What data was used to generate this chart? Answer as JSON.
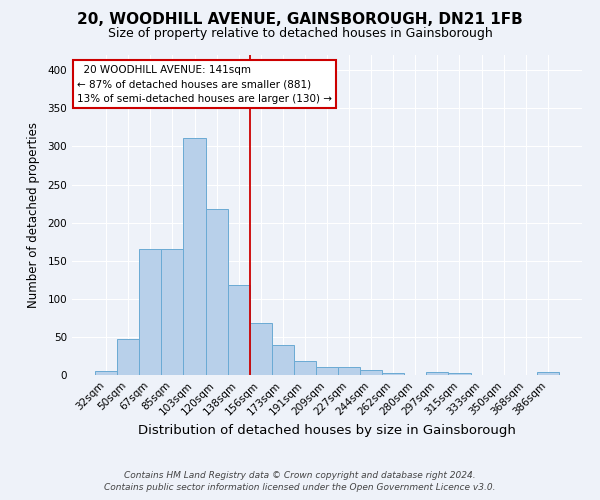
{
  "title": "20, WOODHILL AVENUE, GAINSBOROUGH, DN21 1FB",
  "subtitle": "Size of property relative to detached houses in Gainsborough",
  "xlabel": "Distribution of detached houses by size in Gainsborough",
  "ylabel": "Number of detached properties",
  "footer_line1": "Contains HM Land Registry data © Crown copyright and database right 2024.",
  "footer_line2": "Contains public sector information licensed under the Open Government Licence v3.0.",
  "categories": [
    "32sqm",
    "50sqm",
    "67sqm",
    "85sqm",
    "103sqm",
    "120sqm",
    "138sqm",
    "156sqm",
    "173sqm",
    "191sqm",
    "209sqm",
    "227sqm",
    "244sqm",
    "262sqm",
    "280sqm",
    "297sqm",
    "315sqm",
    "333sqm",
    "350sqm",
    "368sqm",
    "386sqm"
  ],
  "values": [
    5,
    47,
    165,
    165,
    311,
    218,
    118,
    68,
    39,
    19,
    10,
    10,
    7,
    3,
    0,
    4,
    3,
    0,
    0,
    0,
    4
  ],
  "bar_color": "#b8d0ea",
  "bar_edge_color": "#6aaad4",
  "vline_color": "#cc0000",
  "annotation_text": "  20 WOODHILL AVENUE: 141sqm\n← 87% of detached houses are smaller (881)\n13% of semi-detached houses are larger (130) →",
  "annotation_box_color": "#ffffff",
  "annotation_box_edge": "#cc0000",
  "ylim": [
    0,
    420
  ],
  "yticks": [
    0,
    50,
    100,
    150,
    200,
    250,
    300,
    350,
    400
  ],
  "background_color": "#eef2f9",
  "grid_color": "#ffffff",
  "title_fontsize": 11,
  "subtitle_fontsize": 9,
  "xlabel_fontsize": 9.5,
  "ylabel_fontsize": 8.5,
  "tick_fontsize": 7.5,
  "annotation_fontsize": 7.5,
  "footer_fontsize": 6.5
}
